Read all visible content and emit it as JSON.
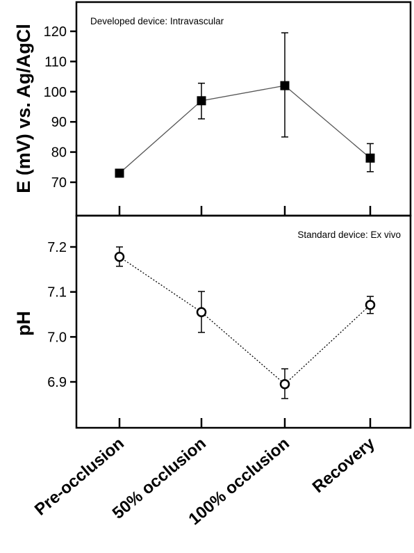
{
  "chart_data": [
    {
      "type": "line",
      "annotation": "Developed device: Intravascular",
      "ylabel": "E (mV) vs. Ag/AgCl",
      "categories": [
        "Pre-occlusion",
        "50% occlusion",
        "100% occlusion",
        "Recovery"
      ],
      "yticks": [
        70,
        80,
        90,
        100,
        110,
        120
      ],
      "ylim": [
        60,
        128
      ],
      "marker": "filled-square",
      "line_style": "solid",
      "series": [
        {
          "values": [
            73,
            97,
            102,
            78
          ],
          "err_low": [
            72,
            91,
            85,
            73.5
          ],
          "err_high": [
            74,
            102.8,
            119.5,
            82.8
          ]
        }
      ]
    },
    {
      "type": "line",
      "annotation": "Standard device: Ex vivo",
      "ylabel": "pH",
      "categories": [
        "Pre-occlusion",
        "50% occlusion",
        "100% occlusion",
        "Recovery"
      ],
      "yticks": [
        6.9,
        7.0,
        7.1,
        7.2
      ],
      "ylim": [
        6.8,
        7.26
      ],
      "marker": "open-circle",
      "line_style": "dotted",
      "series": [
        {
          "values": [
            7.178,
            7.055,
            6.895,
            7.071
          ],
          "err_low": [
            7.157,
            7.01,
            6.863,
            7.052
          ],
          "err_high": [
            7.2,
            7.101,
            6.929,
            7.09
          ]
        }
      ]
    }
  ],
  "x_categories": [
    "Pre-occlusion",
    "50% occlusion",
    "100% occlusion",
    "Recovery"
  ]
}
